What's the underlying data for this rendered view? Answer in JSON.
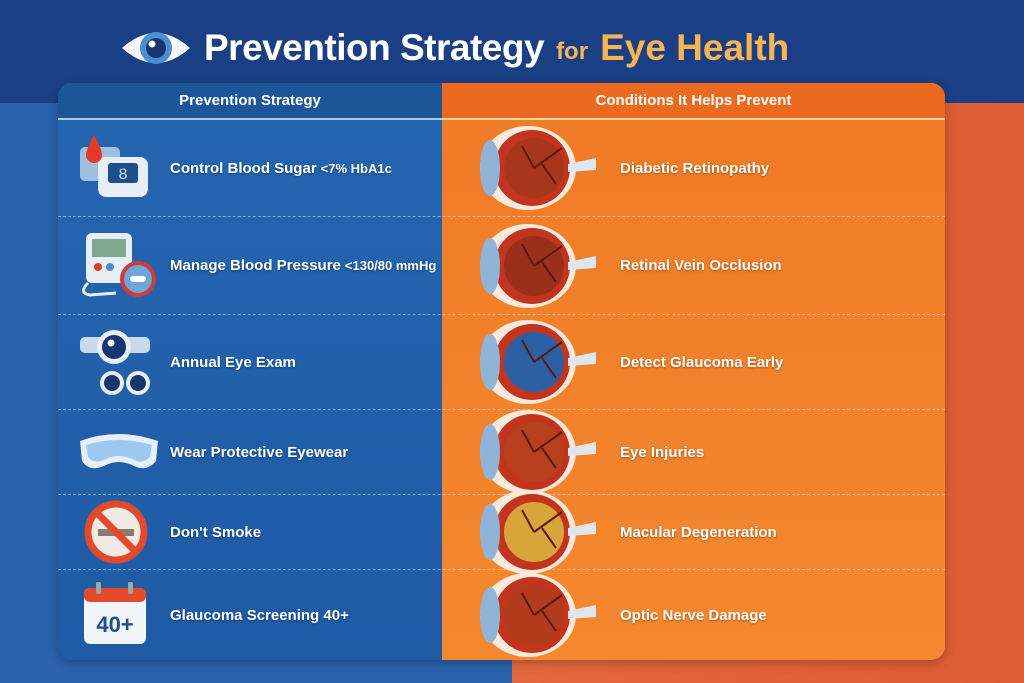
{
  "title": {
    "main": "Prevention Strategy",
    "connector": "for",
    "highlight": "Eye Health"
  },
  "table": {
    "headers": [
      "Prevention Strategy",
      "Conditions It Helps Prevent"
    ],
    "rows": [
      {
        "strategy": "Control Blood Sugar",
        "target": "<7% HbA1c",
        "condition": "Diabetic Retinopathy",
        "icon": "glucose-meter-icon"
      },
      {
        "strategy": "Manage Blood Pressure",
        "target": "<130/80 mmHg",
        "condition": "Retinal Vein Occlusion",
        "icon": "blood-pressure-monitor-icon"
      },
      {
        "strategy": "Annual Eye Exam",
        "target": "",
        "condition": "Detect Glaucoma Early",
        "icon": "eye-exam-icon"
      },
      {
        "strategy": "Wear Protective Eyewear",
        "target": "",
        "condition": "Eye Injuries",
        "icon": "goggles-icon"
      },
      {
        "strategy": "Don't Smoke",
        "target": "",
        "condition": "Macular Degeneration",
        "icon": "no-smoking-icon"
      },
      {
        "strategy": "Glaucoma Screening 40+",
        "target": "",
        "condition": "Optic Nerve Damage",
        "icon": "calendar-icon"
      }
    ]
  },
  "calendar_text": "40+",
  "colors": {
    "navy": "#1b3f85",
    "blue": "#2566b0",
    "orange": "#f07a27",
    "gold": "#f7b453"
  }
}
